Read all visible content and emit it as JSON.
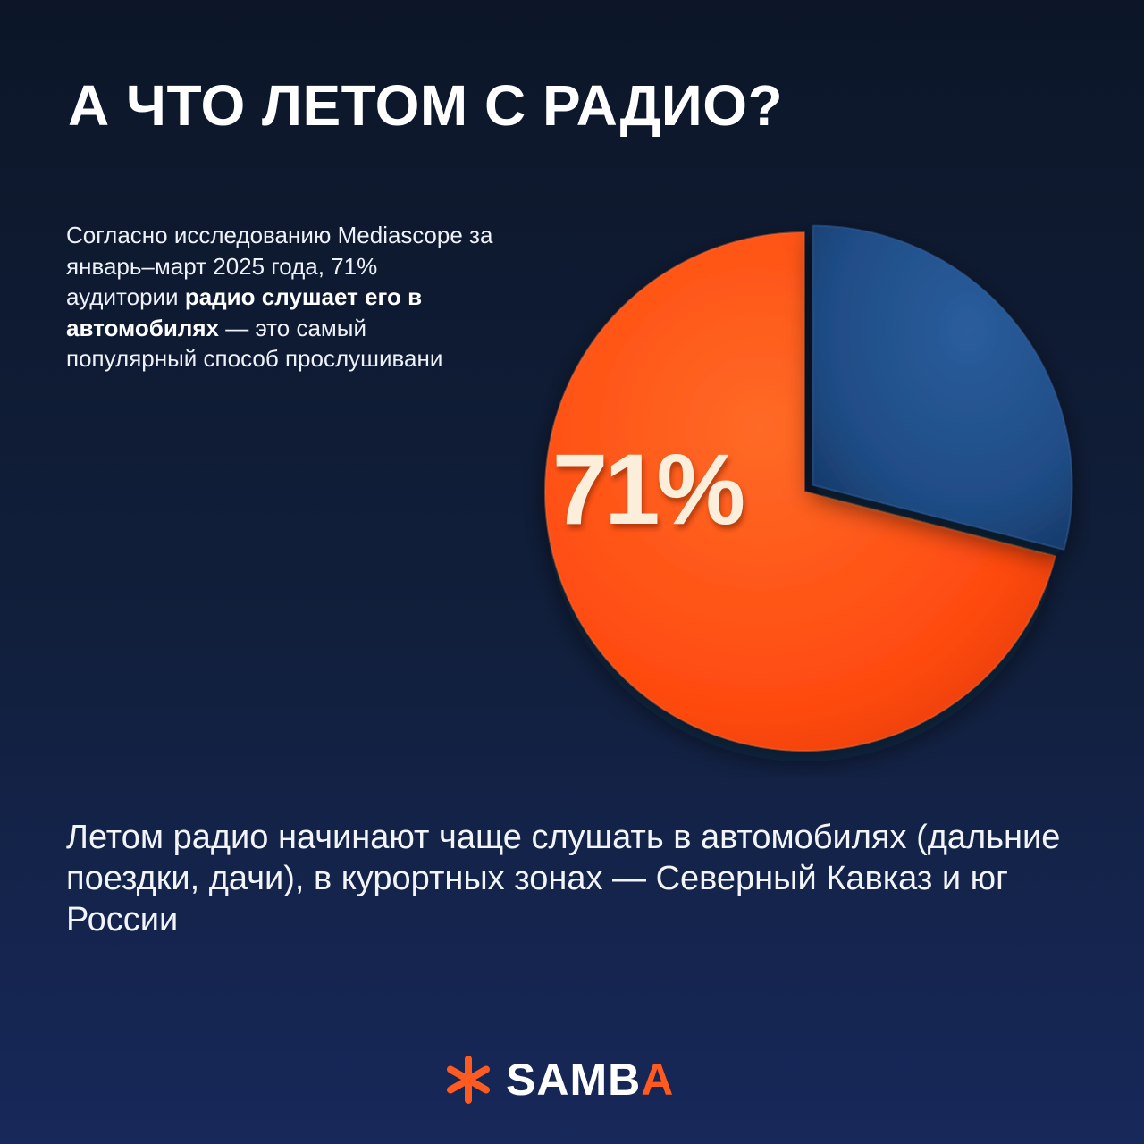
{
  "title": "А ЧТО ЛЕТОМ С РАДИО?",
  "intro": {
    "before": "Согласно исследованию Mediascope за январь–март 2025 года, 71% аудитории ",
    "bold": "радио слушает его в автомобилях",
    "after": " — это самый популярный способ прослушивани"
  },
  "bottom_text": "Летом радио начинают чаще слушать в автомобилях (дальние поездки, дачи), в курортных зонах — Северный Кавказ и юг России",
  "logo": {
    "icon": "asterisk-icon",
    "text_main": "SAMB",
    "text_accent": "A"
  },
  "colors": {
    "background_top": "#0c1628",
    "background_bottom": "#17285a",
    "accent": "#ff5a1f",
    "primary_slice": "#ff4e12",
    "secondary_slice": "#1f4c85",
    "label": "#fbefdc"
  },
  "chart_data": {
    "type": "pie",
    "categories": [
      "71%",
      ""
    ],
    "values": [
      71,
      29
    ],
    "labels": [
      "71%",
      ""
    ],
    "title": ""
  }
}
